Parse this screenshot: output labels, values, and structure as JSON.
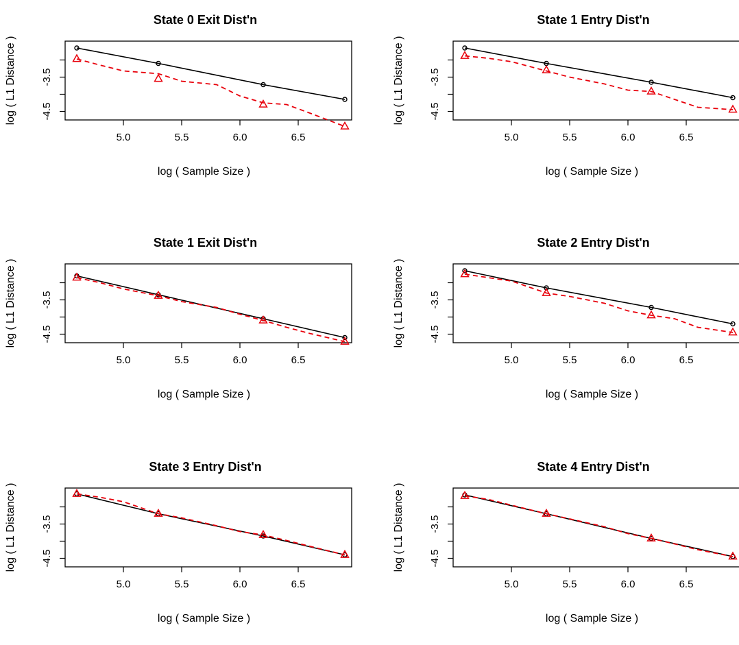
{
  "colors": {
    "observed": "#000000",
    "theoretical": "#e8000b"
  },
  "chart_data": [
    {
      "type": "line",
      "title": "State 0 Exit Dist'n",
      "xlabel": "log ( Sample Size )",
      "ylabel": "log ( L1 Distance )",
      "xticks": [
        "5.0",
        "5.5",
        "6.0",
        "6.5"
      ],
      "yticks": [
        "-3.5",
        "-4.5"
      ],
      "xlim": [
        4.5,
        7.0
      ],
      "ylim": [
        -4.75,
        -2.45
      ],
      "series": [
        {
          "style": "solid-circle",
          "x": [
            4.6,
            5.3,
            6.2,
            6.9
          ],
          "y": [
            -2.65,
            -3.1,
            -3.72,
            -4.15
          ]
        },
        {
          "style": "dashed-triangle",
          "x": [
            4.6,
            5.3,
            6.2,
            6.9
          ],
          "y": [
            -2.97,
            -3.55,
            -4.3,
            -4.94
          ],
          "dense_x": [
            4.6,
            4.8,
            5.0,
            5.3,
            5.5,
            5.8,
            6.0,
            6.2,
            6.4,
            6.6,
            6.9
          ],
          "dense_y": [
            -2.97,
            -3.15,
            -3.32,
            -3.4,
            -3.62,
            -3.72,
            -4.05,
            -4.25,
            -4.3,
            -4.55,
            -4.94
          ]
        }
      ]
    },
    {
      "type": "line",
      "title": "State 1 Entry Dist'n",
      "xlabel": "log ( Sample Size )",
      "ylabel": "log ( L1 Distance )",
      "xticks": [
        "5.0",
        "5.5",
        "6.0",
        "6.5"
      ],
      "yticks": [
        "-3.5",
        "-4.5"
      ],
      "xlim": [
        4.5,
        7.0
      ],
      "ylim": [
        -4.75,
        -2.45
      ],
      "series": [
        {
          "style": "solid-circle",
          "x": [
            4.6,
            5.3,
            6.2,
            6.9
          ],
          "y": [
            -2.65,
            -3.1,
            -3.65,
            -4.1
          ]
        },
        {
          "style": "dashed-triangle",
          "x": [
            4.6,
            5.3,
            6.2,
            6.9
          ],
          "y": [
            -2.88,
            -3.3,
            -3.92,
            -4.45
          ],
          "dense_x": [
            4.6,
            4.8,
            5.0,
            5.3,
            5.5,
            5.8,
            6.0,
            6.2,
            6.4,
            6.6,
            6.9
          ],
          "dense_y": [
            -2.88,
            -2.95,
            -3.05,
            -3.32,
            -3.5,
            -3.7,
            -3.88,
            -3.92,
            -4.15,
            -4.38,
            -4.45
          ]
        }
      ]
    },
    {
      "type": "line",
      "title": "State 1 Exit Dist'n",
      "xlabel": "log ( Sample Size )",
      "ylabel": "log ( L1 Distance )",
      "xticks": [
        "5.0",
        "5.5",
        "6.0",
        "6.5"
      ],
      "yticks": [
        "-3.5",
        "-4.5"
      ],
      "xlim": [
        4.5,
        7.0
      ],
      "ylim": [
        -4.75,
        -2.45
      ],
      "series": [
        {
          "style": "solid-circle",
          "x": [
            4.6,
            5.3,
            6.2,
            6.9
          ],
          "y": [
            -2.8,
            -3.35,
            -4.05,
            -4.6
          ]
        },
        {
          "style": "dashed-triangle",
          "x": [
            4.6,
            5.3,
            6.2,
            6.9
          ],
          "y": [
            -2.85,
            -3.38,
            -4.1,
            -4.72
          ],
          "dense_x": [
            4.6,
            4.8,
            5.0,
            5.3,
            5.5,
            5.8,
            6.0,
            6.2,
            6.4,
            6.6,
            6.9
          ],
          "dense_y": [
            -2.85,
            -3.0,
            -3.18,
            -3.38,
            -3.55,
            -3.72,
            -3.92,
            -4.1,
            -4.3,
            -4.48,
            -4.72
          ]
        }
      ]
    },
    {
      "type": "line",
      "title": "State 2 Entry Dist'n",
      "xlabel": "log ( Sample Size )",
      "ylabel": "log ( L1 Distance )",
      "xticks": [
        "5.0",
        "5.5",
        "6.0",
        "6.5"
      ],
      "yticks": [
        "-3.5",
        "-4.5"
      ],
      "xlim": [
        4.5,
        7.0
      ],
      "ylim": [
        -4.75,
        -2.45
      ],
      "series": [
        {
          "style": "solid-circle",
          "x": [
            4.6,
            5.3,
            6.2,
            6.9
          ],
          "y": [
            -2.65,
            -3.15,
            -3.72,
            -4.2
          ]
        },
        {
          "style": "dashed-triangle",
          "x": [
            4.6,
            5.3,
            6.2,
            6.9
          ],
          "y": [
            -2.75,
            -3.3,
            -3.95,
            -4.45
          ],
          "dense_x": [
            4.6,
            4.8,
            5.0,
            5.3,
            5.5,
            5.8,
            6.0,
            6.2,
            6.4,
            6.6,
            6.9
          ],
          "dense_y": [
            -2.75,
            -2.85,
            -2.95,
            -3.3,
            -3.4,
            -3.6,
            -3.82,
            -3.95,
            -4.05,
            -4.3,
            -4.45
          ]
        }
      ]
    },
    {
      "type": "line",
      "title": "State 3 Entry Dist'n",
      "xlabel": "log ( Sample Size )",
      "ylabel": "log ( L1 Distance )",
      "xticks": [
        "5.0",
        "5.5",
        "6.0",
        "6.5"
      ],
      "yticks": [
        "-3.5",
        "-4.5"
      ],
      "xlim": [
        4.5,
        7.0
      ],
      "ylim": [
        -4.75,
        -2.45
      ],
      "series": [
        {
          "style": "solid-circle",
          "x": [
            4.6,
            5.3,
            6.2,
            6.9
          ],
          "y": [
            -2.62,
            -3.2,
            -3.85,
            -4.4
          ]
        },
        {
          "style": "dashed-triangle",
          "x": [
            4.6,
            5.3,
            6.2,
            6.9
          ],
          "y": [
            -2.62,
            -3.2,
            -3.82,
            -4.4
          ],
          "dense_x": [
            4.6,
            4.8,
            5.0,
            5.3,
            5.5,
            5.8,
            6.0,
            6.2,
            6.4,
            6.6,
            6.9
          ],
          "dense_y": [
            -2.62,
            -2.72,
            -2.85,
            -3.2,
            -3.32,
            -3.55,
            -3.72,
            -3.82,
            -3.98,
            -4.15,
            -4.4
          ]
        }
      ]
    },
    {
      "type": "line",
      "title": "State 4 Entry Dist'n",
      "xlabel": "log ( Sample Size )",
      "ylabel": "log ( L1 Distance )",
      "xticks": [
        "5.0",
        "5.5",
        "6.0",
        "6.5"
      ],
      "yticks": [
        "-3.5",
        "-4.5"
      ],
      "xlim": [
        4.5,
        7.0
      ],
      "ylim": [
        -4.75,
        -2.45
      ],
      "series": [
        {
          "style": "solid-circle",
          "x": [
            4.6,
            5.3,
            6.2,
            6.9
          ],
          "y": [
            -2.65,
            -3.2,
            -3.92,
            -4.45
          ]
        },
        {
          "style": "dashed-triangle",
          "x": [
            4.6,
            5.3,
            6.2,
            6.9
          ],
          "y": [
            -2.68,
            -3.2,
            -3.92,
            -4.45
          ],
          "dense_x": [
            4.6,
            4.8,
            5.0,
            5.3,
            5.5,
            5.8,
            6.0,
            6.2,
            6.4,
            6.6,
            6.9
          ],
          "dense_y": [
            -2.68,
            -2.78,
            -2.95,
            -3.2,
            -3.35,
            -3.58,
            -3.78,
            -3.92,
            -4.08,
            -4.25,
            -4.45
          ]
        }
      ]
    }
  ]
}
